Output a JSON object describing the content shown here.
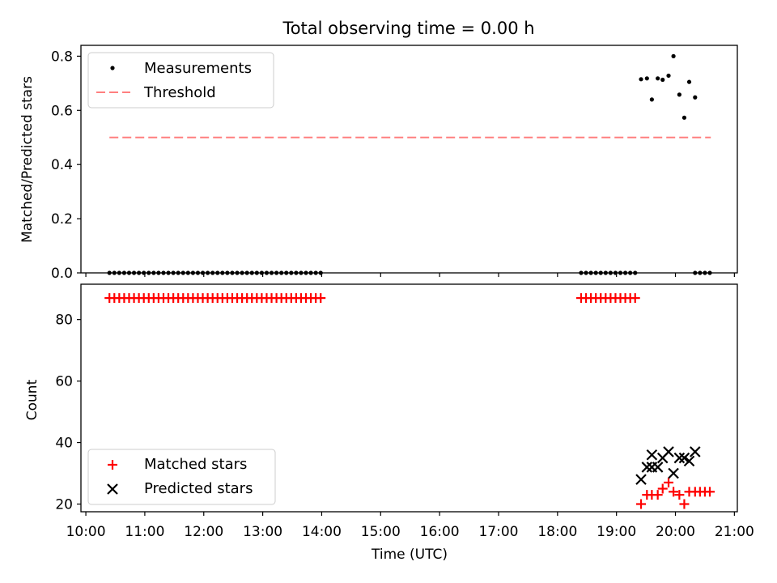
{
  "chart_data": [
    {
      "type": "scatter",
      "title": "Total observing time = 0.00 h",
      "xlabel": "",
      "ylabel": "Matched/Predicted stars",
      "xlim": [
        "10:00",
        "21:00"
      ],
      "ylim": [
        0,
        0.84
      ],
      "yticks": [
        "0.0",
        "0.2",
        "0.4",
        "0.6",
        "0.8"
      ],
      "legend_position": "top-left",
      "threshold": {
        "name": "Threshold",
        "value": 0.5,
        "x_start": "10:24",
        "x_end": "20:36",
        "color": "#ff7f7f",
        "style": "dashed"
      },
      "series": [
        {
          "name": "Measurements",
          "color": "#000000",
          "marker": "dot",
          "points": [
            [
              "10:24",
              0
            ],
            [
              "10:29",
              0
            ],
            [
              "10:34",
              0
            ],
            [
              "10:39",
              0
            ],
            [
              "10:44",
              0
            ],
            [
              "10:49",
              0
            ],
            [
              "10:54",
              0
            ],
            [
              "10:59",
              0
            ],
            [
              "11:04",
              0
            ],
            [
              "11:09",
              0
            ],
            [
              "11:14",
              0
            ],
            [
              "11:19",
              0
            ],
            [
              "11:24",
              0
            ],
            [
              "11:29",
              0
            ],
            [
              "11:34",
              0
            ],
            [
              "11:39",
              0
            ],
            [
              "11:44",
              0
            ],
            [
              "11:49",
              0
            ],
            [
              "11:54",
              0
            ],
            [
              "11:59",
              0
            ],
            [
              "12:04",
              0
            ],
            [
              "12:09",
              0
            ],
            [
              "12:14",
              0
            ],
            [
              "12:19",
              0
            ],
            [
              "12:24",
              0
            ],
            [
              "12:29",
              0
            ],
            [
              "12:34",
              0
            ],
            [
              "12:39",
              0
            ],
            [
              "12:44",
              0
            ],
            [
              "12:49",
              0
            ],
            [
              "12:54",
              0
            ],
            [
              "12:59",
              0
            ],
            [
              "13:04",
              0
            ],
            [
              "13:09",
              0
            ],
            [
              "13:14",
              0
            ],
            [
              "13:19",
              0
            ],
            [
              "13:24",
              0
            ],
            [
              "13:29",
              0
            ],
            [
              "13:34",
              0
            ],
            [
              "13:39",
              0
            ],
            [
              "13:44",
              0
            ],
            [
              "13:49",
              0
            ],
            [
              "13:54",
              0
            ],
            [
              "13:59",
              0
            ],
            [
              "18:24",
              0
            ],
            [
              "18:29",
              0
            ],
            [
              "18:34",
              0
            ],
            [
              "18:39",
              0
            ],
            [
              "18:44",
              0
            ],
            [
              "18:49",
              0
            ],
            [
              "18:54",
              0
            ],
            [
              "18:59",
              0
            ],
            [
              "19:04",
              0
            ],
            [
              "19:09",
              0
            ],
            [
              "19:14",
              0
            ],
            [
              "19:19",
              0
            ],
            [
              "19:25",
              0.715
            ],
            [
              "19:31",
              0.718
            ],
            [
              "19:36",
              0.64
            ],
            [
              "19:42",
              0.718
            ],
            [
              "19:47",
              0.713
            ],
            [
              "19:53",
              0.728
            ],
            [
              "19:58",
              0.8
            ],
            [
              "20:04",
              0.658
            ],
            [
              "20:09",
              0.573
            ],
            [
              "20:14",
              0.705
            ],
            [
              "20:20",
              0.648
            ],
            [
              "20:20",
              0
            ],
            [
              "20:25",
              0
            ],
            [
              "20:30",
              0
            ],
            [
              "20:35",
              0
            ]
          ]
        }
      ]
    },
    {
      "type": "scatter",
      "title": "",
      "xlabel": "Time (UTC)",
      "ylabel": "Count",
      "xlim": [
        "10:00",
        "21:00"
      ],
      "ylim": [
        17.5,
        91.5
      ],
      "xticks": [
        "10:00",
        "11:00",
        "12:00",
        "13:00",
        "14:00",
        "15:00",
        "16:00",
        "17:00",
        "18:00",
        "19:00",
        "20:00",
        "21:00"
      ],
      "yticks": [
        "20",
        "40",
        "60",
        "80"
      ],
      "legend_position": "bottom-left",
      "series": [
        {
          "name": "Matched stars",
          "color": "#ff0000",
          "marker": "plus",
          "points": [
            [
              "10:24",
              87
            ],
            [
              "10:29",
              87
            ],
            [
              "10:34",
              87
            ],
            [
              "10:39",
              87
            ],
            [
              "10:44",
              87
            ],
            [
              "10:49",
              87
            ],
            [
              "10:54",
              87
            ],
            [
              "10:59",
              87
            ],
            [
              "11:04",
              87
            ],
            [
              "11:09",
              87
            ],
            [
              "11:14",
              87
            ],
            [
              "11:19",
              87
            ],
            [
              "11:24",
              87
            ],
            [
              "11:29",
              87
            ],
            [
              "11:34",
              87
            ],
            [
              "11:39",
              87
            ],
            [
              "11:44",
              87
            ],
            [
              "11:49",
              87
            ],
            [
              "11:54",
              87
            ],
            [
              "11:59",
              87
            ],
            [
              "12:04",
              87
            ],
            [
              "12:09",
              87
            ],
            [
              "12:14",
              87
            ],
            [
              "12:19",
              87
            ],
            [
              "12:24",
              87
            ],
            [
              "12:29",
              87
            ],
            [
              "12:34",
              87
            ],
            [
              "12:39",
              87
            ],
            [
              "12:44",
              87
            ],
            [
              "12:49",
              87
            ],
            [
              "12:54",
              87
            ],
            [
              "12:59",
              87
            ],
            [
              "13:04",
              87
            ],
            [
              "13:09",
              87
            ],
            [
              "13:14",
              87
            ],
            [
              "13:19",
              87
            ],
            [
              "13:24",
              87
            ],
            [
              "13:29",
              87
            ],
            [
              "13:34",
              87
            ],
            [
              "13:39",
              87
            ],
            [
              "13:44",
              87
            ],
            [
              "13:49",
              87
            ],
            [
              "13:54",
              87
            ],
            [
              "13:59",
              87
            ],
            [
              "18:24",
              87
            ],
            [
              "18:29",
              87
            ],
            [
              "18:34",
              87
            ],
            [
              "18:39",
              87
            ],
            [
              "18:44",
              87
            ],
            [
              "18:49",
              87
            ],
            [
              "18:54",
              87
            ],
            [
              "18:59",
              87
            ],
            [
              "19:04",
              87
            ],
            [
              "19:09",
              87
            ],
            [
              "19:14",
              87
            ],
            [
              "19:19",
              87
            ],
            [
              "19:25",
              20
            ],
            [
              "19:31",
              23
            ],
            [
              "19:36",
              23
            ],
            [
              "19:42",
              23
            ],
            [
              "19:47",
              25
            ],
            [
              "19:53",
              27
            ],
            [
              "19:58",
              24
            ],
            [
              "20:04",
              23
            ],
            [
              "20:09",
              20
            ],
            [
              "20:14",
              24
            ],
            [
              "20:20",
              24
            ],
            [
              "20:25",
              24
            ],
            [
              "20:30",
              24
            ],
            [
              "20:35",
              24
            ]
          ]
        },
        {
          "name": "Predicted stars",
          "color": "#000000",
          "marker": "x",
          "points": [
            [
              "19:25",
              28
            ],
            [
              "19:31",
              32
            ],
            [
              "19:36",
              36
            ],
            [
              "19:36",
              32
            ],
            [
              "19:42",
              32
            ],
            [
              "19:47",
              35
            ],
            [
              "19:53",
              37
            ],
            [
              "19:58",
              30
            ],
            [
              "20:04",
              35
            ],
            [
              "20:09",
              35
            ],
            [
              "20:14",
              34
            ],
            [
              "20:20",
              37
            ]
          ]
        }
      ]
    }
  ]
}
